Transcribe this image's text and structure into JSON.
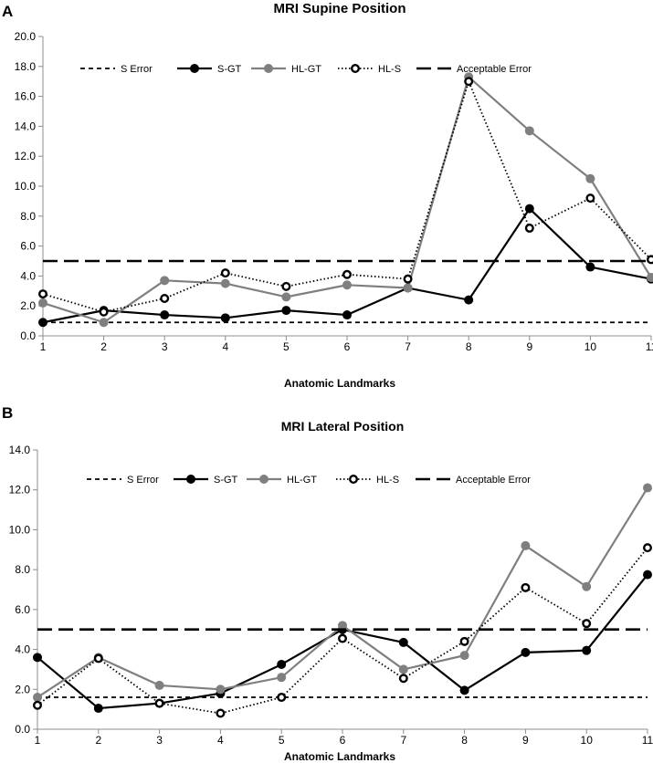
{
  "chart_data": [
    {
      "type": "line",
      "panel_label": "A",
      "title": "MRI Supine Position",
      "xlabel": "Anatomic Landmarks",
      "ylabel": "",
      "x": [
        1,
        2,
        3,
        4,
        5,
        6,
        7,
        8,
        9,
        10,
        11
      ],
      "ylim": [
        0,
        20
      ],
      "yticks": [
        "0.0",
        "2.0",
        "4.0",
        "6.0",
        "8.0",
        "10.0",
        "12.0",
        "14.0",
        "16.0",
        "18.0",
        "20.0"
      ],
      "xticks": [
        "1",
        "2",
        "3",
        "4",
        "5",
        "6",
        "7",
        "8",
        "9",
        "10",
        "11"
      ],
      "legend_position": "top",
      "series": [
        {
          "name": "S Error",
          "style": "short-dash",
          "values": [
            0.9,
            0.9,
            0.9,
            0.9,
            0.9,
            0.9,
            0.9,
            0.9,
            0.9,
            0.9,
            0.9
          ]
        },
        {
          "name": "S-GT",
          "style": "solid-black",
          "values": [
            0.9,
            1.7,
            1.4,
            1.2,
            1.7,
            1.4,
            3.2,
            2.4,
            8.5,
            4.6,
            3.8
          ]
        },
        {
          "name": "HL-GT",
          "style": "solid-gray",
          "values": [
            2.2,
            0.9,
            3.7,
            3.5,
            2.6,
            3.4,
            3.2,
            17.3,
            13.7,
            10.5,
            3.9
          ]
        },
        {
          "name": "HL-S",
          "style": "dotted-open",
          "values": [
            2.8,
            1.6,
            2.5,
            4.2,
            3.3,
            4.1,
            3.8,
            17.0,
            7.2,
            9.2,
            5.1
          ]
        },
        {
          "name": "Acceptable Error",
          "style": "long-dash",
          "values": [
            5,
            5,
            5,
            5,
            5,
            5,
            5,
            5,
            5,
            5,
            5
          ]
        }
      ]
    },
    {
      "type": "line",
      "panel_label": "B",
      "title": "MRI Lateral Position",
      "xlabel": "Anatomic Landmarks",
      "ylabel": "",
      "x": [
        1,
        2,
        3,
        4,
        5,
        6,
        7,
        8,
        9,
        10,
        11
      ],
      "ylim": [
        0,
        14
      ],
      "yticks": [
        "0.0",
        "2.0",
        "4.0",
        "6.0",
        "8.0",
        "10.0",
        "12.0",
        "14.0"
      ],
      "xticks": [
        "1",
        "2",
        "3",
        "4",
        "5",
        "6",
        "7",
        "8",
        "9",
        "10",
        "11"
      ],
      "legend_position": "top",
      "series": [
        {
          "name": "S Error",
          "style": "short-dash",
          "values": [
            1.6,
            1.6,
            1.6,
            1.6,
            1.6,
            1.6,
            1.6,
            1.6,
            1.6,
            1.6,
            1.6
          ]
        },
        {
          "name": "S-GT",
          "style": "solid-black",
          "values": [
            3.6,
            1.05,
            1.3,
            1.8,
            3.25,
            5.0,
            4.35,
            1.95,
            3.85,
            3.95,
            7.75
          ]
        },
        {
          "name": "HL-GT",
          "style": "solid-gray",
          "values": [
            1.6,
            3.6,
            2.2,
            2.0,
            2.6,
            5.2,
            3.0,
            3.7,
            9.2,
            7.15,
            12.1
          ]
        },
        {
          "name": "HL-S",
          "style": "dotted-open",
          "values": [
            1.2,
            3.55,
            1.3,
            0.8,
            1.6,
            4.55,
            2.55,
            4.4,
            7.1,
            5.3,
            9.1
          ]
        },
        {
          "name": "Acceptable Error",
          "style": "long-dash",
          "values": [
            5,
            5,
            5,
            5,
            5,
            5,
            5,
            5,
            5,
            5,
            5
          ]
        }
      ]
    }
  ],
  "colors": {
    "black": "#000000",
    "gray": "#7f7f7f",
    "axis": "#8c8c8c"
  }
}
